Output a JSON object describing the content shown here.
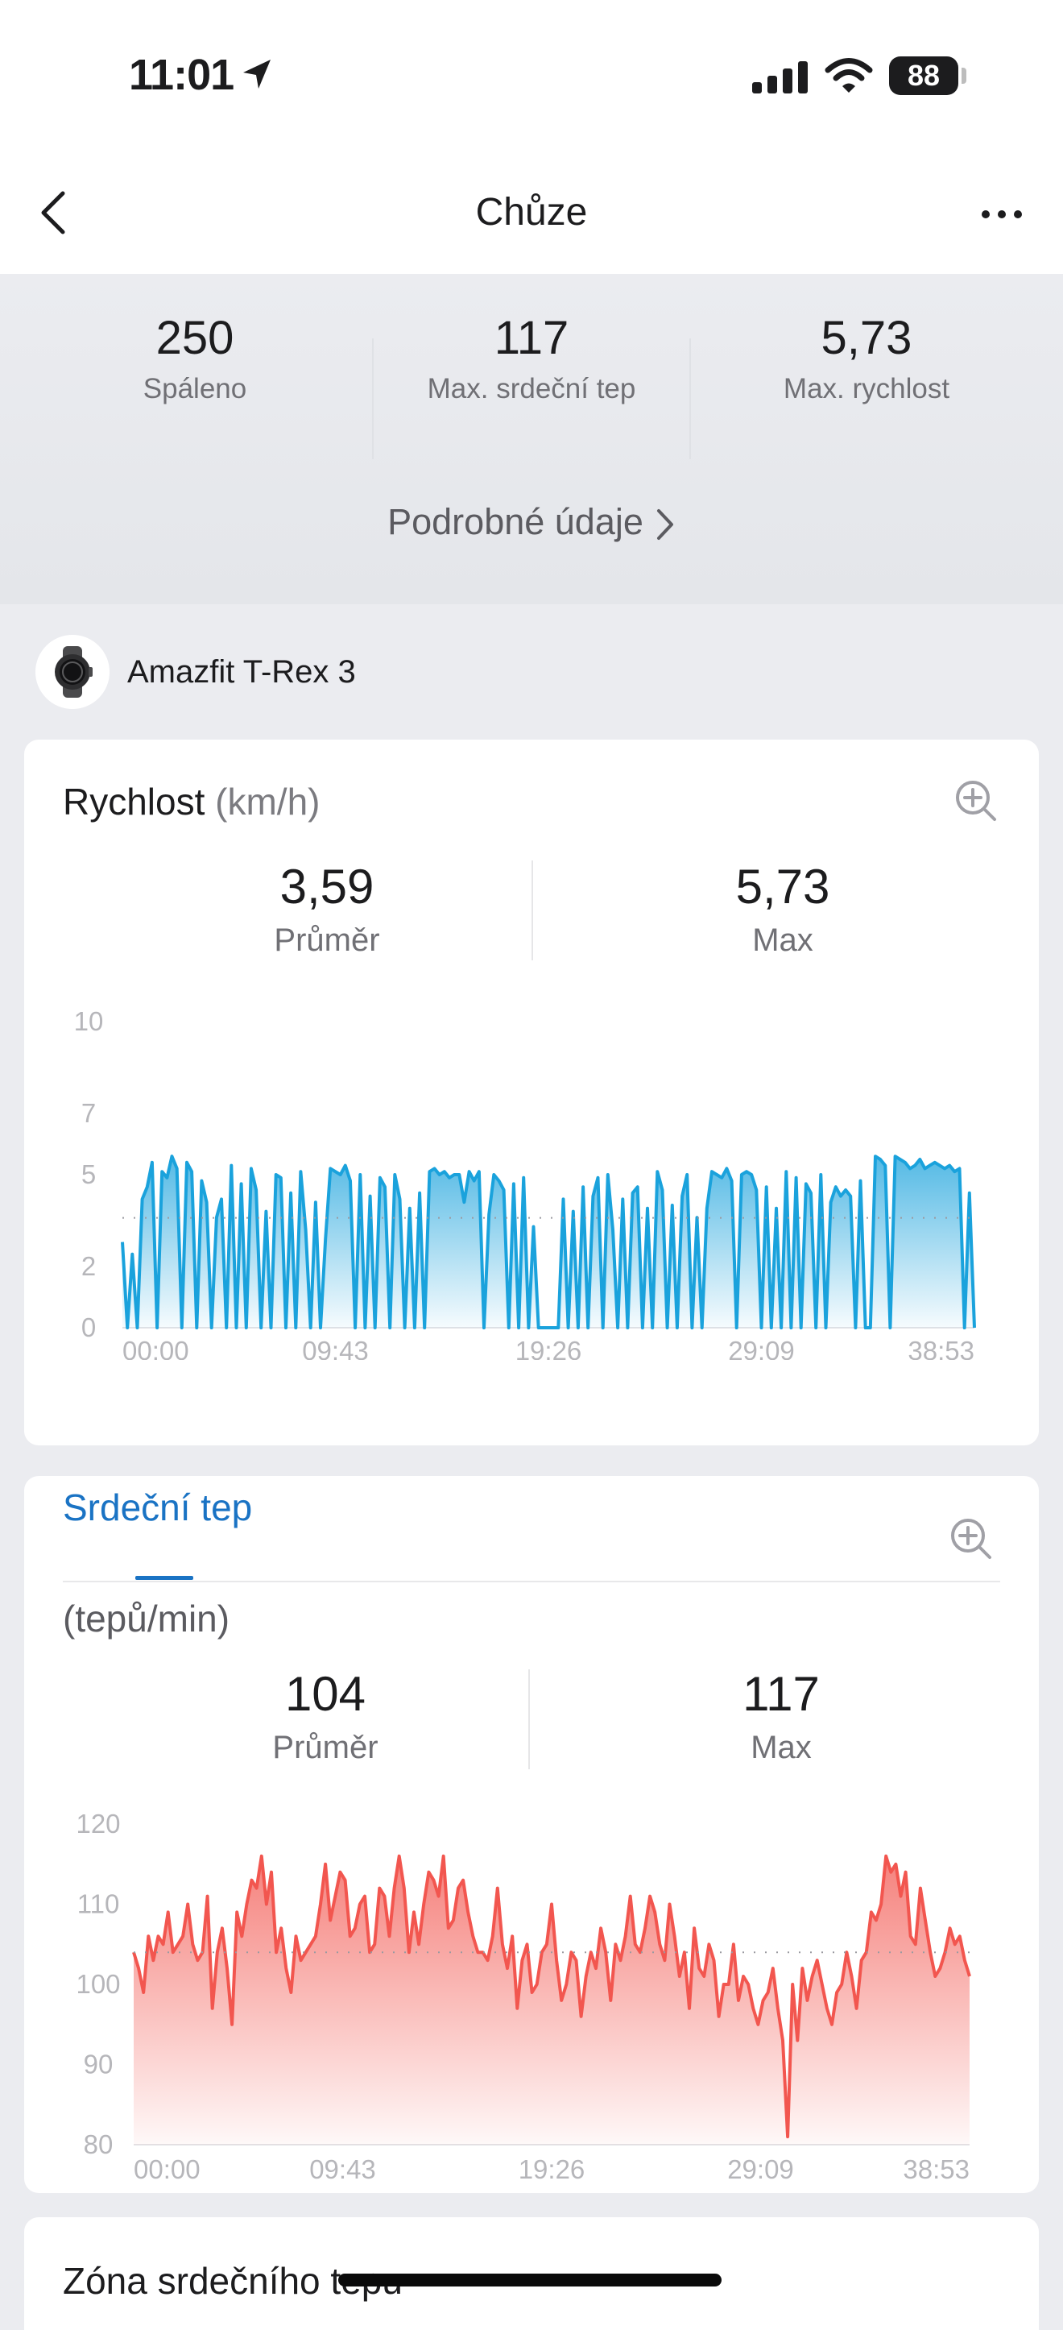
{
  "status_bar": {
    "time": "11:01",
    "battery": "88"
  },
  "header": {
    "title": "Chůze"
  },
  "summary": {
    "stats": [
      {
        "value": "250",
        "label": "Spáleno"
      },
      {
        "value": "117",
        "label": "Max. srdeční tep"
      },
      {
        "value": "5,73",
        "label": "Max. rychlost"
      }
    ],
    "details_link": "Podrobné údaje"
  },
  "device": {
    "name": "Amazfit T-Rex 3"
  },
  "speed_card": {
    "title": "Rychlost",
    "unit": "(km/h)",
    "avg_value": "3,59",
    "avg_label": "Průměr",
    "max_value": "5,73",
    "max_label": "Max"
  },
  "hr_card": {
    "tab_label": "Srdeční tep",
    "unit": "(tepů/min)",
    "avg_value": "104",
    "avg_label": "Průměr",
    "max_value": "117",
    "max_label": "Max"
  },
  "zone_card": {
    "title": "Zóna srdečního tepu"
  },
  "colors": {
    "speed": "#1aa2dc",
    "heart_rate": "#f2564f",
    "accent": "#1a73c4"
  },
  "chart_data": [
    {
      "type": "area",
      "ylim": [
        0,
        10
      ],
      "yticks": [
        "10",
        "7",
        "5",
        "2",
        "0"
      ],
      "xticks": [
        "00:00",
        "09:43",
        "19:26",
        "29:09",
        "38:53"
      ],
      "average": 3.59,
      "y": [
        2.8,
        0,
        2.4,
        0,
        4.2,
        4.6,
        5.4,
        0,
        5.1,
        4.9,
        5.6,
        5.2,
        0,
        5.4,
        5.1,
        0,
        4.8,
        4.1,
        0,
        3.6,
        4.2,
        0,
        5.3,
        0,
        4.7,
        0,
        5.2,
        4.5,
        0,
        3.8,
        0,
        5.0,
        4.9,
        0,
        4.4,
        0,
        5.1,
        3.2,
        0,
        4.1,
        0,
        2.9,
        5.2,
        5.1,
        5.0,
        5.3,
        4.8,
        0,
        5.0,
        0,
        4.3,
        0,
        4.9,
        4.6,
        0,
        5.0,
        4.2,
        0,
        3.9,
        0,
        4.4,
        0,
        5.1,
        5.2,
        5.0,
        5.1,
        4.9,
        5.0,
        5.0,
        4.1,
        5.1,
        4.8,
        5.1,
        0,
        3.7,
        5.0,
        4.8,
        4.5,
        0,
        4.7,
        0,
        4.9,
        0,
        3.3,
        0,
        0,
        0,
        0,
        0,
        4.2,
        0,
        3.8,
        0,
        4.6,
        0,
        4.3,
        4.9,
        0,
        5.0,
        3.2,
        0,
        4.2,
        0,
        4.4,
        4.6,
        0,
        3.9,
        0,
        5.1,
        4.5,
        0,
        4.0,
        0,
        4.3,
        5.0,
        0,
        3.6,
        0,
        3.9,
        5.1,
        5.0,
        4.9,
        5.2,
        4.8,
        0,
        5.0,
        5.1,
        5.0,
        4.5,
        0,
        4.6,
        0,
        3.9,
        0,
        5.1,
        0,
        4.9,
        0,
        4.7,
        4.4,
        0,
        5.0,
        0,
        4.1,
        4.6,
        4.3,
        4.5,
        4.3,
        0,
        4.8,
        0,
        0,
        5.6,
        5.5,
        5.3,
        0,
        5.6,
        5.5,
        5.4,
        5.2,
        5.3,
        5.5,
        5.2,
        5.3,
        5.4,
        5.3,
        5.2,
        5.3,
        5.1,
        5.2,
        0,
        4.4,
        0
      ],
      "x_label": "",
      "y_label": ""
    },
    {
      "type": "area",
      "ylim": [
        80,
        120
      ],
      "yticks": [
        "120",
        "110",
        "100",
        "90",
        "80"
      ],
      "xticks": [
        "00:00",
        "09:43",
        "19:26",
        "29:09",
        "38:53"
      ],
      "average": 104,
      "y": [
        104,
        102,
        99,
        106,
        103,
        106,
        105,
        109,
        104,
        105,
        106,
        110,
        105,
        103,
        104,
        111,
        97,
        104,
        107,
        102,
        95,
        109,
        106,
        110,
        113,
        112,
        116,
        110,
        114,
        104,
        107,
        102,
        99,
        106,
        103,
        104,
        105,
        106,
        110,
        115,
        108,
        111,
        114,
        113,
        106,
        107,
        110,
        111,
        104,
        105,
        112,
        111,
        106,
        112,
        116,
        112,
        104,
        109,
        105,
        110,
        114,
        113,
        111,
        116,
        107,
        108,
        112,
        113,
        109,
        106,
        104,
        104,
        103,
        106,
        112,
        105,
        102,
        106,
        97,
        103,
        105,
        99,
        100,
        104,
        105,
        110,
        103,
        98,
        100,
        104,
        103,
        96,
        101,
        104,
        102,
        107,
        104,
        98,
        105,
        103,
        106,
        111,
        105,
        104,
        107,
        111,
        109,
        105,
        103,
        110,
        106,
        101,
        104,
        97,
        107,
        102,
        101,
        105,
        103,
        96,
        100,
        100,
        105,
        98,
        101,
        100,
        97,
        95,
        98,
        99,
        102,
        97,
        93,
        81,
        100,
        93,
        102,
        98,
        101,
        103,
        100,
        97,
        95,
        99,
        100,
        104,
        101,
        97,
        103,
        104,
        109,
        108,
        110,
        116,
        114,
        115,
        111,
        114,
        106,
        105,
        112,
        108,
        104,
        101,
        102,
        104,
        107,
        105,
        106,
        103,
        101
      ]
    }
  ]
}
